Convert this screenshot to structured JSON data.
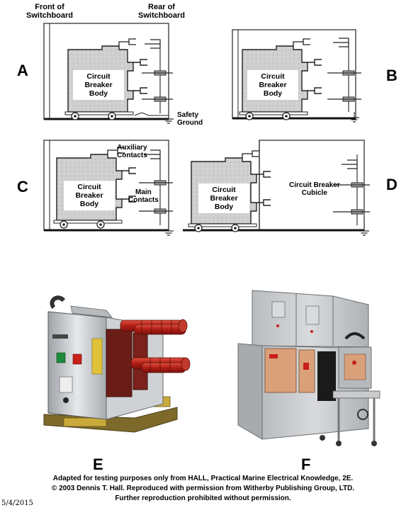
{
  "panels": {
    "a": "A",
    "b": "B",
    "c": "C",
    "d": "D",
    "e": "E",
    "f": "F"
  },
  "labels": {
    "front_line1": "Front of",
    "front_line2": "Switchboard",
    "rear_line1": "Rear of",
    "rear_line2": "Switchboard",
    "cb_line1": "Circuit",
    "cb_line2": "Breaker",
    "cb_line3": "Body",
    "safety_line1": "Safety",
    "safety_line2": "Ground",
    "aux_line1": "Auxiliary",
    "aux_line2": "Contacts",
    "main_line1": "Main",
    "main_line2": "Contacts",
    "cubicle_line1": "Circuit Breaker",
    "cubicle_line2": "Cubicle"
  },
  "credits": {
    "line1": "Adapted for testing purposes only from HALL, Practical Marine Electrical Knowledge, 2E.",
    "line2": "© 2003 Dennis T. Hall. Reproduced with permission from Witherby Publishing Group, LTD.",
    "line3": "Further reproduction prohibited without permission.",
    "date": "5/4/2015"
  }
}
